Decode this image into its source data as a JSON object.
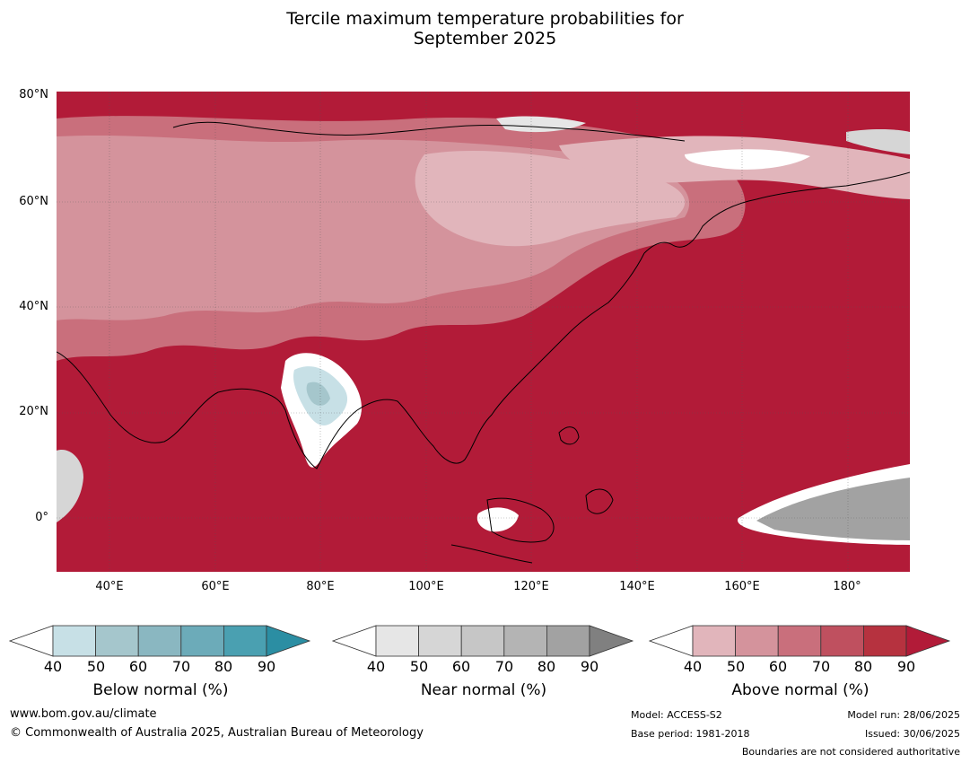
{
  "title_line1": "Tercile maximum temperature probabilities for",
  "title_line2": "September 2025",
  "lat_labels": [
    "80°N",
    "60°N",
    "40°N",
    "20°N",
    "0°"
  ],
  "lon_labels": [
    "40°E",
    "60°E",
    "80°E",
    "100°E",
    "120°E",
    "140°E",
    "160°E",
    "180°"
  ],
  "legends": [
    {
      "title": "Below normal (%)",
      "ticks": [
        "40",
        "50",
        "60",
        "70",
        "80",
        "90"
      ],
      "colors": [
        "#ffffff",
        "#c7e0e6",
        "#a5c6cc",
        "#8ab7c1",
        "#6cabb9",
        "#4aa0b1",
        "#2b8ea3"
      ]
    },
    {
      "title": "Near normal (%)",
      "ticks": [
        "40",
        "50",
        "60",
        "70",
        "80",
        "90"
      ],
      "colors": [
        "#ffffff",
        "#e6e6e6",
        "#d6d6d6",
        "#c6c6c6",
        "#b4b4b4",
        "#a2a2a2",
        "#808080"
      ]
    },
    {
      "title": "Above normal (%)",
      "ticks": [
        "40",
        "50",
        "60",
        "70",
        "80",
        "90"
      ],
      "colors": [
        "#ffffff",
        "#e1b5bb",
        "#d4939c",
        "#c96f7c",
        "#bf505f",
        "#b6323f",
        "#b21b38"
      ]
    }
  ],
  "footer": {
    "website": "www.bom.gov.au/climate",
    "copyright": "© Commonwealth of Australia 2025, Australian Bureau of Meteorology",
    "model": "Model: ACCESS-S2",
    "base_period": "Base period: 1981-2018",
    "model_run": "Model run: 28/06/2025",
    "issued": "Issued: 30/06/2025",
    "disclaimer": "Boundaries are not considered authoritative"
  }
}
